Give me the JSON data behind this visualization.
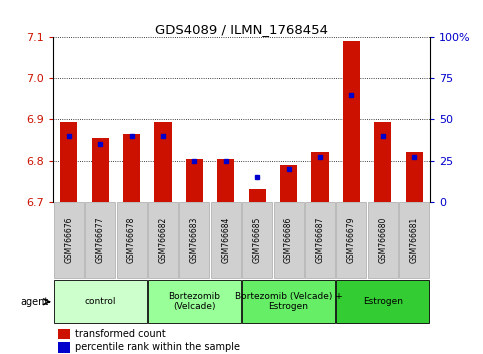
{
  "title": "GDS4089 / ILMN_1768454",
  "samples": [
    "GSM766676",
    "GSM766677",
    "GSM766678",
    "GSM766682",
    "GSM766683",
    "GSM766684",
    "GSM766685",
    "GSM766686",
    "GSM766687",
    "GSM766679",
    "GSM766680",
    "GSM766681"
  ],
  "transformed_count": [
    6.895,
    6.855,
    6.865,
    6.895,
    6.805,
    6.805,
    6.73,
    6.79,
    6.82,
    7.09,
    6.895,
    6.82
  ],
  "percentile_rank": [
    40,
    35,
    40,
    40,
    25,
    25,
    15,
    20,
    27,
    65,
    40,
    27
  ],
  "y_min": 6.7,
  "y_max": 7.1,
  "y_ticks_left": [
    6.7,
    6.8,
    6.9,
    7.0,
    7.1
  ],
  "y_ticks_right": [
    0,
    25,
    50,
    75,
    100
  ],
  "bar_color": "#cc1100",
  "dot_color": "#0000cc",
  "groups": [
    {
      "label": "control",
      "start": 0,
      "end": 3,
      "color": "#ccffcc"
    },
    {
      "label": "Bortezomib\n(Velcade)",
      "start": 3,
      "end": 6,
      "color": "#99ff99"
    },
    {
      "label": "Bortezomib (Velcade) +\nEstrogen",
      "start": 6,
      "end": 9,
      "color": "#66ee66"
    },
    {
      "label": "Estrogen",
      "start": 9,
      "end": 12,
      "color": "#33cc33"
    }
  ],
  "agent_label": "agent",
  "legend_red": "transformed count",
  "legend_blue": "percentile rank within the sample",
  "sample_bg": "#d0d0d0",
  "plot_bg": "white"
}
